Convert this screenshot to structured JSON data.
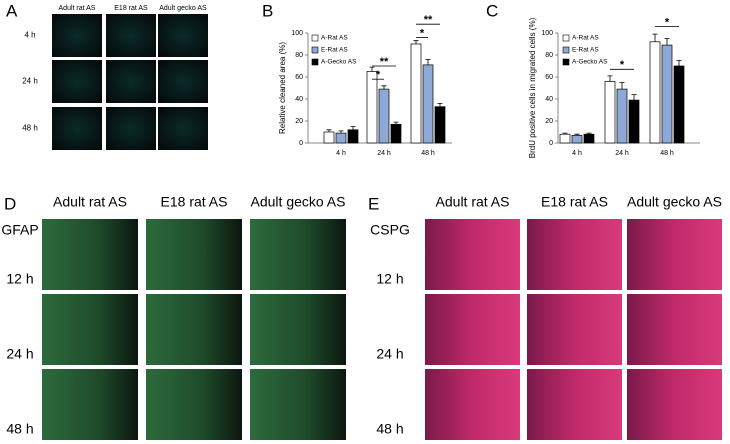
{
  "panels": {
    "A": {
      "label": "A",
      "columns": [
        "Adult rat AS",
        "E18 rat AS",
        "Adult gecko AS"
      ],
      "rows": [
        "4 h",
        "24 h",
        "48 h"
      ]
    },
    "D": {
      "label": "D",
      "columns": [
        "Adult rat AS",
        "E18 rat AS",
        "Adult gecko AS"
      ],
      "stain": "GFAP",
      "rows": [
        "12 h",
        "24 h",
        "48 h"
      ]
    },
    "E": {
      "label": "E",
      "columns": [
        "Adult rat AS",
        "E18 rat AS",
        "Adult gecko AS"
      ],
      "stain": "CSPG",
      "rows": [
        "12 h",
        "24 h",
        "48 h"
      ]
    }
  },
  "chart_data": [
    {
      "type": "bar",
      "panel_label": "B",
      "y_label": "Relative cleaned area (%)",
      "categories": [
        "4 h",
        "24 h",
        "48 h"
      ],
      "ylim": [
        0,
        100
      ],
      "yticks": [
        0,
        20,
        40,
        60,
        80,
        100
      ],
      "series": [
        {
          "name": "A-Rat AS",
          "color": "#ffffff",
          "values": [
            10,
            65,
            90
          ],
          "errors": [
            2,
            4,
            3
          ]
        },
        {
          "name": "E-Rat AS",
          "color": "#8fa9d6",
          "values": [
            9,
            49,
            71
          ],
          "errors": [
            2,
            3,
            5
          ]
        },
        {
          "name": "A-Gecko AS",
          "color": "#000000",
          "values": [
            12,
            17,
            33
          ],
          "errors": [
            3,
            2,
            3
          ]
        }
      ],
      "annotations": [
        "*",
        "**",
        "*",
        "**"
      ]
    },
    {
      "type": "bar",
      "panel_label": "C",
      "y_label": "BrdU positive cells in migrated cells (%)",
      "categories": [
        "4 h",
        "24 h",
        "48 h"
      ],
      "ylim": [
        0,
        100
      ],
      "yticks": [
        0,
        20,
        40,
        60,
        80,
        100
      ],
      "series": [
        {
          "name": "A-Rat AS",
          "color": "#ffffff",
          "values": [
            8,
            56,
            92
          ],
          "errors": [
            1,
            5,
            7
          ]
        },
        {
          "name": "E-Rat AS",
          "color": "#8fa9d6",
          "values": [
            7,
            49,
            89
          ],
          "errors": [
            1,
            6,
            6
          ]
        },
        {
          "name": "A-Gecko AS",
          "color": "#000000",
          "values": [
            8,
            39,
            70
          ],
          "errors": [
            1,
            5,
            5
          ]
        }
      ],
      "annotations": [
        "*",
        "*"
      ]
    }
  ]
}
